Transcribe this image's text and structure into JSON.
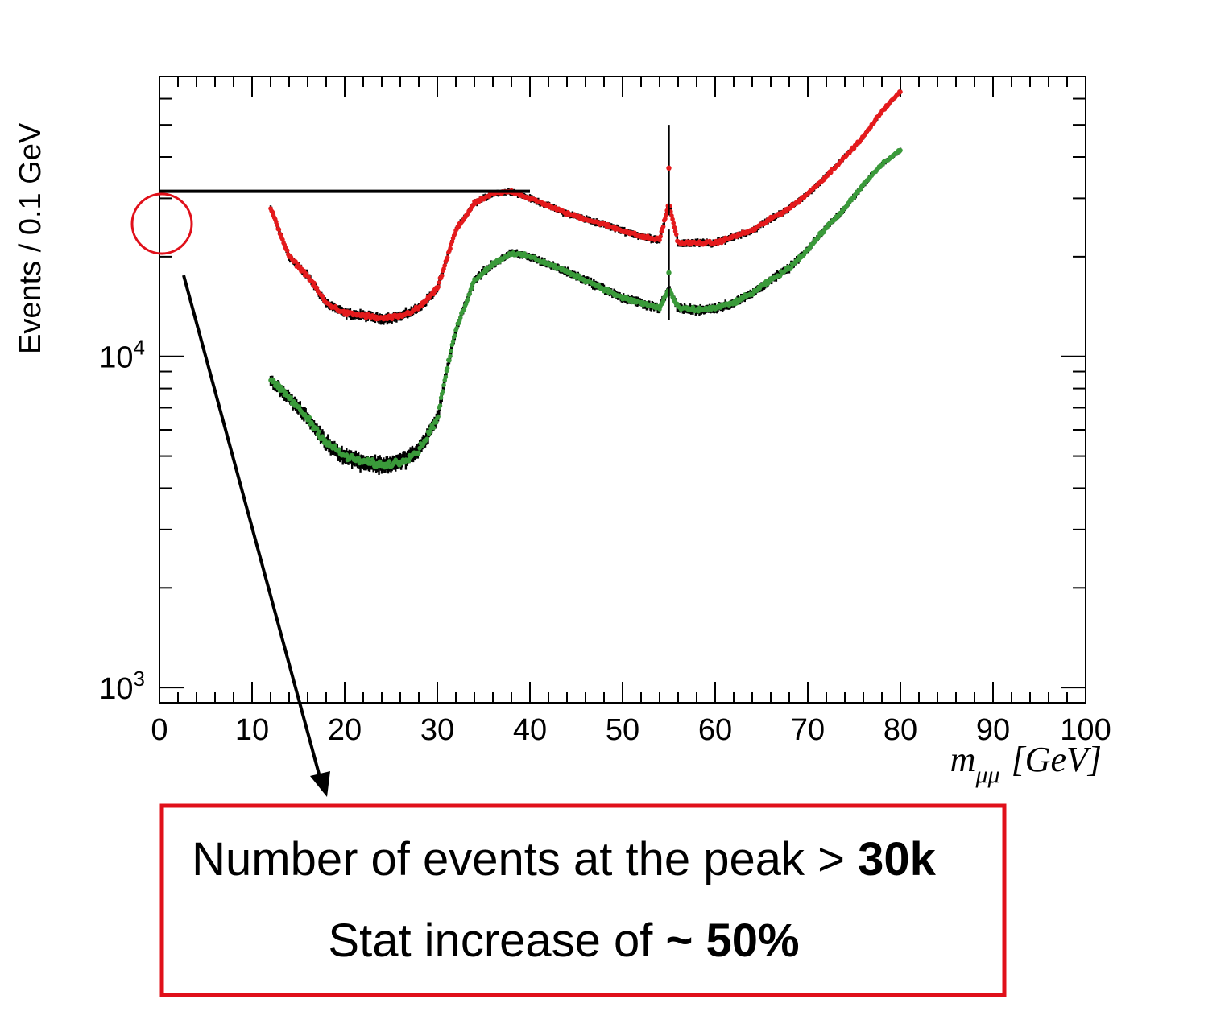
{
  "chart_data": {
    "type": "scatter",
    "title": "",
    "xlabel": "m_μμ [GeV]",
    "xlabel_parts": {
      "main": "m",
      "sub": "μμ",
      "unit": "[GeV]"
    },
    "ylabel": "Events / 0.1 GeV",
    "xlim": [
      0,
      100
    ],
    "ylim": [
      900,
      70000
    ],
    "y_scale": "log",
    "grid": false,
    "x_ticks": [
      "0",
      "10",
      "20",
      "30",
      "40",
      "50",
      "60",
      "70",
      "80",
      "90",
      "100"
    ],
    "y_ticks": [
      {
        "value": 1000,
        "base": "10",
        "exp": "3"
      },
      {
        "value": 10000,
        "base": "10",
        "exp": "4"
      }
    ],
    "series": [
      {
        "color": "#e41a1c",
        "x": [
          12,
          14,
          16,
          18,
          20,
          22,
          24,
          26,
          28,
          30,
          32,
          34,
          36,
          38,
          40,
          42,
          44,
          46,
          48,
          50,
          52,
          54,
          55,
          56,
          58,
          60,
          62,
          64,
          66,
          68,
          70,
          72,
          74,
          76,
          78,
          80
        ],
        "y": [
          28000,
          20000,
          17500,
          14500,
          13500,
          13300,
          13000,
          13200,
          14000,
          16000,
          24000,
          29000,
          31000,
          31500,
          30000,
          28500,
          27000,
          26000,
          25000,
          24000,
          23000,
          22500,
          29000,
          22000,
          22000,
          22000,
          23000,
          24000,
          26000,
          28000,
          31000,
          35000,
          40000,
          46000,
          55000,
          63000
        ]
      },
      {
        "color": "#3a9a3a",
        "x": [
          12,
          14,
          16,
          18,
          20,
          22,
          24,
          26,
          28,
          30,
          31,
          32,
          34,
          36,
          38,
          40,
          42,
          44,
          46,
          48,
          50,
          52,
          54,
          55,
          56,
          58,
          60,
          62,
          64,
          66,
          68,
          70,
          72,
          74,
          76,
          78,
          80
        ],
        "y": [
          8500,
          7500,
          6500,
          5500,
          5000,
          4800,
          4700,
          4800,
          5200,
          6500,
          9000,
          12000,
          17000,
          19000,
          20500,
          20000,
          19000,
          18000,
          17000,
          16000,
          15000,
          14500,
          14000,
          16000,
          14000,
          13800,
          14000,
          14500,
          15500,
          17000,
          18500,
          21000,
          24500,
          28000,
          33000,
          38000,
          42000
        ]
      }
    ],
    "annotations": {
      "peak_level": 31500,
      "peak_line_x": [
        0,
        40
      ],
      "spike_x": 55
    }
  },
  "callout": {
    "line1_text": "Number of events at the peak > ",
    "line1_bold": "30k",
    "line2_text": "Stat increase of  ",
    "line2_bold": "~ 50%"
  },
  "colors": {
    "red_series": "#e41a1c",
    "green_series": "#3a9a3a",
    "callout_border": "#e0101a",
    "axes": "#000000"
  }
}
